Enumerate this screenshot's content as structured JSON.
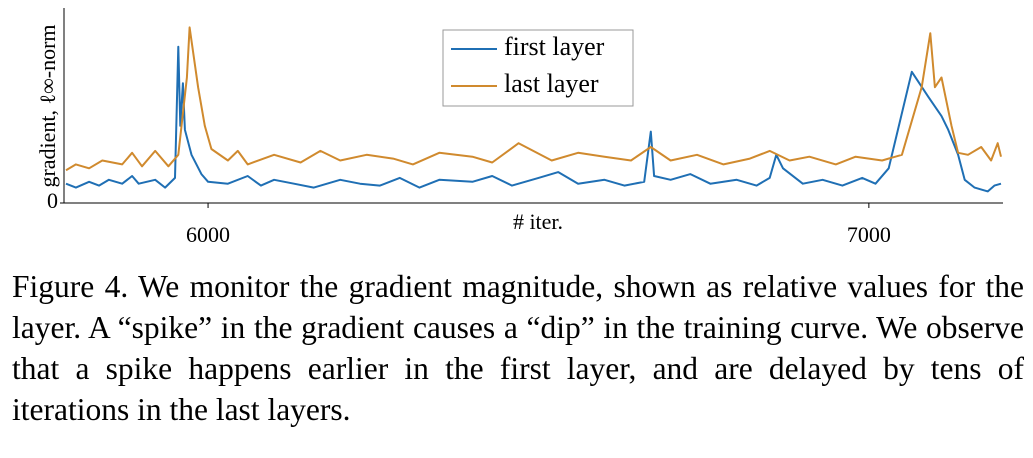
{
  "chart_data": {
    "type": "line",
    "x_label": "# iter.",
    "y_label": "gradient, ℓ∞-norm",
    "xlim": [
      5782,
      7203
    ],
    "xticks": [
      6000,
      7000
    ],
    "ylim": [
      0,
      1
    ],
    "yticks": [
      0
    ],
    "legend": "top",
    "series": [
      {
        "name": "first layer",
        "color": "#1f6fb4",
        "x": [
          5785,
          5800,
          5820,
          5835,
          5850,
          5870,
          5885,
          5895,
          5920,
          5935,
          5950,
          5955,
          5958,
          5962,
          5965,
          5975,
          5990,
          6000,
          6030,
          6060,
          6080,
          6100,
          6130,
          6160,
          6200,
          6230,
          6260,
          6290,
          6320,
          6350,
          6400,
          6430,
          6460,
          6500,
          6530,
          6560,
          6600,
          6630,
          6660,
          6670,
          6675,
          6700,
          6730,
          6760,
          6800,
          6830,
          6850,
          6860,
          6870,
          6900,
          6930,
          6960,
          6990,
          7010,
          7030,
          7065,
          7090,
          7110,
          7120,
          7135,
          7145,
          7160,
          7180,
          7190,
          7200
        ],
        "values": [
          0.1,
          0.08,
          0.11,
          0.09,
          0.12,
          0.1,
          0.14,
          0.1,
          0.12,
          0.08,
          0.13,
          0.81,
          0.4,
          0.62,
          0.38,
          0.25,
          0.15,
          0.11,
          0.1,
          0.14,
          0.09,
          0.12,
          0.1,
          0.08,
          0.12,
          0.1,
          0.09,
          0.13,
          0.08,
          0.12,
          0.11,
          0.14,
          0.09,
          0.13,
          0.16,
          0.1,
          0.12,
          0.09,
          0.11,
          0.37,
          0.14,
          0.12,
          0.15,
          0.1,
          0.12,
          0.09,
          0.13,
          0.25,
          0.18,
          0.1,
          0.12,
          0.09,
          0.13,
          0.1,
          0.18,
          0.68,
          0.55,
          0.45,
          0.38,
          0.25,
          0.12,
          0.08,
          0.06,
          0.09,
          0.1
        ]
      },
      {
        "name": "last layer",
        "color": "#d08a2e",
        "x": [
          5785,
          5800,
          5820,
          5840,
          5870,
          5885,
          5900,
          5920,
          5940,
          5955,
          5968,
          5972,
          5985,
          5995,
          6005,
          6030,
          6045,
          6060,
          6100,
          6140,
          6170,
          6200,
          6240,
          6280,
          6310,
          6350,
          6400,
          6430,
          6470,
          6520,
          6560,
          6600,
          6640,
          6670,
          6700,
          6740,
          6780,
          6820,
          6850,
          6880,
          6910,
          6950,
          6980,
          7020,
          7050,
          7080,
          7093,
          7100,
          7110,
          7125,
          7135,
          7150,
          7170,
          7185,
          7195,
          7200
        ],
        "values": [
          0.17,
          0.2,
          0.18,
          0.22,
          0.2,
          0.26,
          0.19,
          0.27,
          0.19,
          0.25,
          0.65,
          0.91,
          0.6,
          0.4,
          0.28,
          0.22,
          0.27,
          0.2,
          0.25,
          0.21,
          0.27,
          0.22,
          0.25,
          0.23,
          0.2,
          0.26,
          0.24,
          0.21,
          0.31,
          0.22,
          0.26,
          0.24,
          0.22,
          0.29,
          0.22,
          0.25,
          0.2,
          0.23,
          0.27,
          0.22,
          0.24,
          0.2,
          0.24,
          0.22,
          0.25,
          0.6,
          0.88,
          0.6,
          0.65,
          0.4,
          0.26,
          0.25,
          0.29,
          0.22,
          0.31,
          0.24
        ]
      }
    ],
    "caption": "Figure 4.  We monitor the gradient magnitude, shown as relative values for the layer. A “spike” in the gradient causes a “dip” in the training curve. We observe that a spike happens earlier in the first layer, and are delayed by tens of iterations in the last layers."
  }
}
